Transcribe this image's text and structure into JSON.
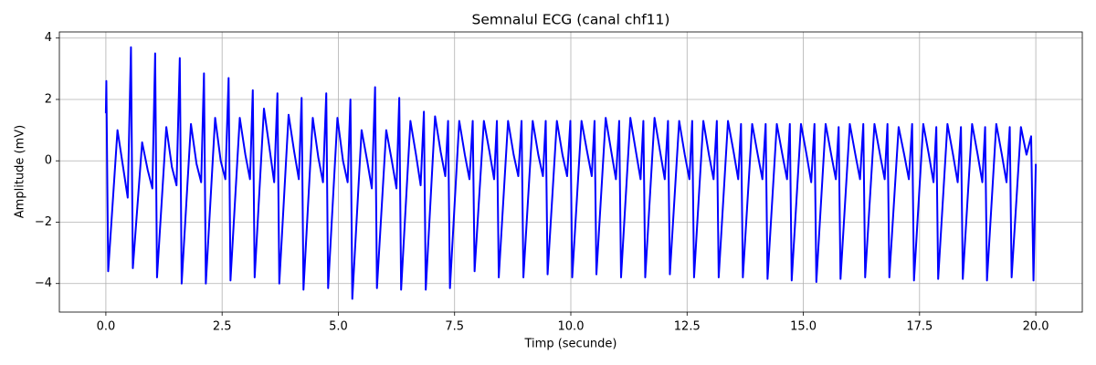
{
  "chart_data": {
    "type": "line",
    "title": "Semnalul ECG (canal chf11)",
    "xlabel": "Timp (secunde)",
    "ylabel": "Amplitude (mV)",
    "x": [
      0.0,
      0.01,
      0.05,
      0.25,
      0.37,
      0.47,
      0.54,
      0.58,
      0.78,
      0.9,
      1.0,
      1.06,
      1.1,
      1.3,
      1.42,
      1.52,
      1.59,
      1.63,
      1.83,
      1.95,
      2.05,
      2.11,
      2.15,
      2.35,
      2.47,
      2.57,
      2.64,
      2.68,
      2.88,
      3.0,
      3.1,
      3.16,
      3.2,
      3.4,
      3.52,
      3.62,
      3.69,
      3.73,
      3.93,
      4.05,
      4.15,
      4.21,
      4.25,
      4.45,
      4.57,
      4.67,
      4.74,
      4.78,
      4.98,
      5.1,
      5.2,
      5.26,
      5.3,
      5.5,
      5.62,
      5.72,
      5.79,
      5.83,
      6.03,
      6.15,
      6.25,
      6.31,
      6.35,
      6.55,
      6.67,
      6.77,
      6.84,
      6.88,
      7.08,
      7.2,
      7.3,
      7.36,
      7.4,
      7.6,
      7.72,
      7.82,
      7.89,
      7.93,
      8.13,
      8.25,
      8.35,
      8.41,
      8.45,
      8.65,
      8.77,
      8.87,
      8.94,
      8.98,
      9.18,
      9.3,
      9.4,
      9.46,
      9.5,
      9.7,
      9.82,
      9.92,
      9.99,
      10.03,
      10.23,
      10.35,
      10.45,
      10.51,
      10.55,
      10.75,
      10.87,
      10.97,
      11.04,
      11.08,
      11.28,
      11.4,
      11.5,
      11.56,
      11.6,
      11.8,
      11.92,
      12.02,
      12.09,
      12.13,
      12.33,
      12.45,
      12.55,
      12.61,
      12.65,
      12.85,
      12.97,
      13.07,
      13.14,
      13.18,
      13.38,
      13.5,
      13.6,
      13.66,
      13.7,
      13.9,
      14.02,
      14.12,
      14.19,
      14.23,
      14.43,
      14.55,
      14.65,
      14.71,
      14.75,
      14.95,
      15.07,
      15.17,
      15.24,
      15.28,
      15.48,
      15.6,
      15.7,
      15.76,
      15.8,
      16.0,
      16.12,
      16.22,
      16.29,
      16.33,
      16.53,
      16.65,
      16.75,
      16.81,
      16.85,
      17.05,
      17.17,
      17.27,
      17.34,
      17.38,
      17.58,
      17.7,
      17.8,
      17.86,
      17.9,
      18.1,
      18.22,
      18.32,
      18.39,
      18.43,
      18.63,
      18.75,
      18.85,
      18.91,
      18.95,
      19.15,
      19.27,
      19.37,
      19.44,
      19.48,
      19.68,
      19.8,
      19.9,
      19.95,
      20.0
    ],
    "values": [
      1.55,
      2.6,
      -3.6,
      1.0,
      -0.2,
      -1.2,
      3.7,
      -3.5,
      0.6,
      -0.3,
      -0.9,
      3.5,
      -3.8,
      1.1,
      -0.2,
      -0.8,
      3.35,
      -4.0,
      1.2,
      -0.1,
      -0.7,
      2.85,
      -4.0,
      1.4,
      0.0,
      -0.6,
      2.7,
      -3.9,
      1.4,
      0.2,
      -0.6,
      2.3,
      -3.8,
      1.7,
      0.4,
      -0.7,
      2.2,
      -4.0,
      1.5,
      0.3,
      -0.6,
      2.05,
      -4.2,
      1.4,
      0.1,
      -0.7,
      2.2,
      -4.15,
      1.4,
      0.0,
      -0.7,
      2.0,
      -4.5,
      1.0,
      0.0,
      -0.9,
      2.4,
      -4.15,
      1.0,
      0.0,
      -0.9,
      2.05,
      -4.2,
      1.3,
      0.2,
      -0.8,
      1.6,
      -4.2,
      1.45,
      0.3,
      -0.5,
      1.3,
      -4.15,
      1.3,
      0.2,
      -0.6,
      1.3,
      -3.6,
      1.3,
      0.3,
      -0.6,
      1.3,
      -3.8,
      1.3,
      0.2,
      -0.5,
      1.3,
      -3.8,
      1.3,
      0.2,
      -0.5,
      1.3,
      -3.7,
      1.3,
      0.2,
      -0.5,
      1.3,
      -3.8,
      1.3,
      0.3,
      -0.5,
      1.3,
      -3.7,
      1.4,
      0.3,
      -0.6,
      1.3,
      -3.8,
      1.4,
      0.3,
      -0.6,
      1.3,
      -3.8,
      1.4,
      0.3,
      -0.6,
      1.3,
      -3.7,
      1.3,
      0.2,
      -0.6,
      1.3,
      -3.8,
      1.3,
      0.2,
      -0.6,
      1.3,
      -3.8,
      1.3,
      0.3,
      -0.6,
      1.2,
      -3.8,
      1.2,
      0.2,
      -0.6,
      1.2,
      -3.85,
      1.2,
      0.2,
      -0.6,
      1.2,
      -3.9,
      1.2,
      0.2,
      -0.7,
      1.2,
      -3.95,
      1.2,
      0.2,
      -0.6,
      1.1,
      -3.85,
      1.2,
      0.2,
      -0.6,
      1.2,
      -3.8,
      1.2,
      0.2,
      -0.6,
      1.2,
      -3.8,
      1.1,
      0.2,
      -0.6,
      1.2,
      -3.9,
      1.2,
      0.2,
      -0.7,
      1.1,
      -3.85,
      1.2,
      0.2,
      -0.7,
      1.1,
      -3.85,
      1.2,
      0.2,
      -0.7,
      1.1,
      -3.9,
      1.2,
      0.2,
      -0.7,
      1.1,
      -3.8,
      1.1,
      0.2,
      0.8,
      -3.9,
      -0.1
    ],
    "color": "#0000ff",
    "xlim": [
      -1.0,
      21.0
    ],
    "ylim": [
      -4.93,
      4.2
    ],
    "xticks": [
      {
        "value": 0,
        "label": "0.0"
      },
      {
        "value": 2.5,
        "label": "2.5"
      },
      {
        "value": 5,
        "label": "5.0"
      },
      {
        "value": 7.5,
        "label": "7.5"
      },
      {
        "value": 10,
        "label": "10.0"
      },
      {
        "value": 12.5,
        "label": "12.5"
      },
      {
        "value": 15,
        "label": "15.0"
      },
      {
        "value": 17.5,
        "label": "17.5"
      },
      {
        "value": 20,
        "label": "20.0"
      }
    ],
    "yticks": [
      {
        "value": -4,
        "label": "−4"
      },
      {
        "value": -2,
        "label": "−2"
      },
      0,
      2,
      4
    ],
    "grid": true
  }
}
